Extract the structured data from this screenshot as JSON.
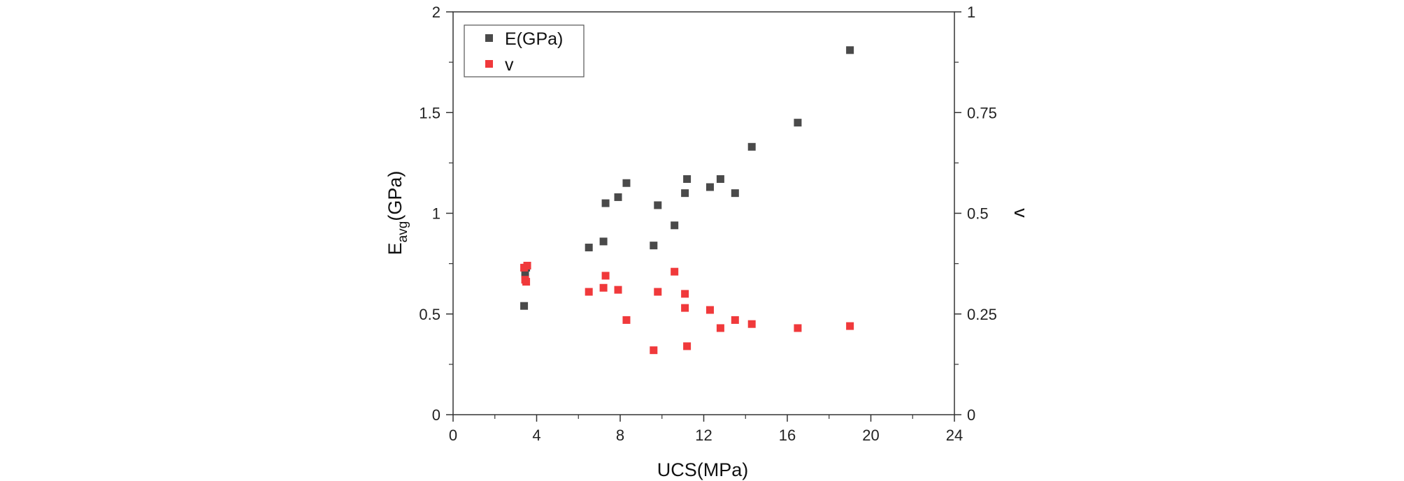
{
  "chart_data": {
    "type": "scatter",
    "title": "",
    "xlabel": "UCS(MPa)",
    "ylabel": {
      "main": "E",
      "sub": "avg",
      "unit": "(GPa)"
    },
    "y2label": "v",
    "xlim": [
      0,
      24
    ],
    "ylim": [
      0,
      2
    ],
    "y2lim": [
      0,
      1
    ],
    "xticks": [
      0,
      4,
      8,
      12,
      16,
      20,
      24
    ],
    "yticks": [
      0,
      0.5,
      1,
      1.5,
      2
    ],
    "y2ticks": [
      0,
      0.25,
      0.5,
      0.75,
      1
    ],
    "legend_position": "top-left",
    "series": [
      {
        "name": "E(GPa)",
        "axis": "left",
        "color": "#4a4a4a",
        "x": [
          3.4,
          3.45,
          3.5,
          6.5,
          7.2,
          7.3,
          7.9,
          8.3,
          9.6,
          9.8,
          10.6,
          11.1,
          11.2,
          12.3,
          12.8,
          13.5,
          14.3,
          16.5,
          19.0
        ],
        "y": [
          0.54,
          0.7,
          0.73,
          0.83,
          0.86,
          1.05,
          1.08,
          1.15,
          0.84,
          1.04,
          0.94,
          1.1,
          1.17,
          1.13,
          1.17,
          1.1,
          1.33,
          1.45,
          1.81
        ]
      },
      {
        "name": "v",
        "axis": "right",
        "color": "#f0393b",
        "x": [
          3.4,
          3.45,
          3.5,
          3.55,
          6.5,
          7.2,
          7.3,
          7.9,
          8.3,
          9.6,
          9.8,
          10.6,
          11.1,
          11.1,
          11.2,
          12.3,
          12.8,
          13.5,
          14.3,
          16.5,
          19.0
        ],
        "y": [
          0.365,
          0.335,
          0.33,
          0.37,
          0.305,
          0.315,
          0.345,
          0.31,
          0.235,
          0.16,
          0.305,
          0.355,
          0.265,
          0.3,
          0.17,
          0.26,
          0.215,
          0.235,
          0.225,
          0.215,
          0.22
        ]
      }
    ]
  }
}
